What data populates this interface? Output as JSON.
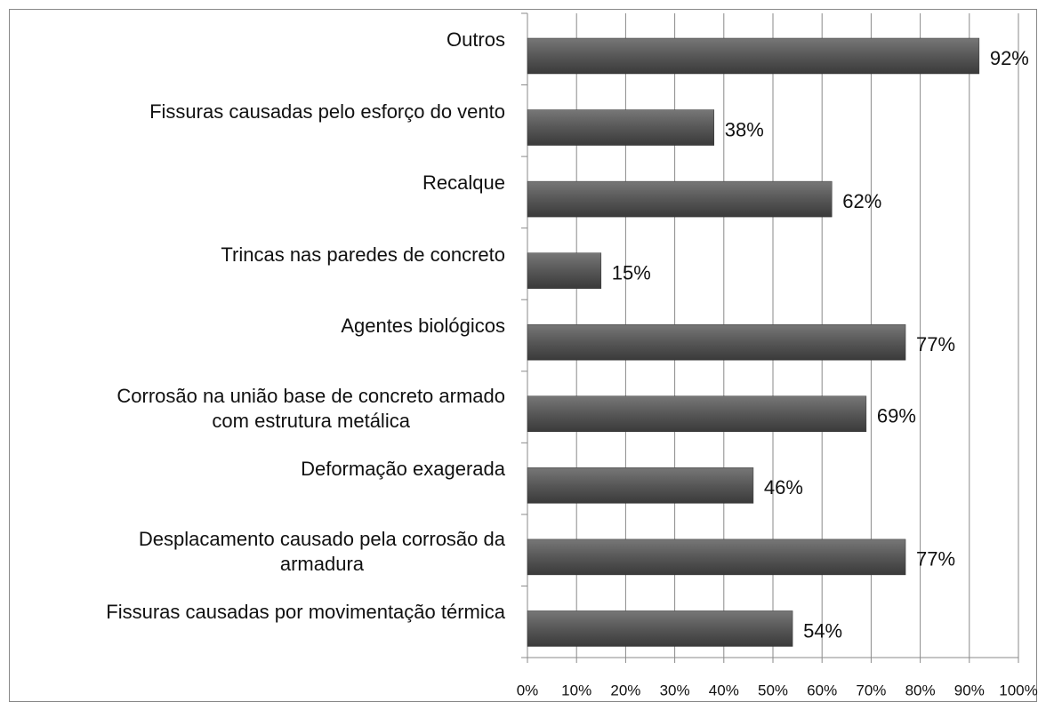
{
  "chart_data": {
    "type": "hbar",
    "categories": [
      "Outros",
      "Fissuras causadas pelo esforço do vento",
      "Recalque",
      "Trincas nas paredes de concreto",
      "Agentes biológicos",
      "Corrosão na união base de concreto armado\ncom estrutura metálica",
      "Deformação exagerada",
      "Desplacamento causado pela corrosão da\narmadura",
      "Fissuras causadas por movimentação térmica"
    ],
    "values": [
      92,
      38,
      62,
      15,
      77,
      69,
      46,
      77,
      54
    ],
    "value_labels": [
      "92%",
      "38%",
      "62%",
      "15%",
      "77%",
      "69%",
      "46%",
      "77%",
      "54%"
    ],
    "color": "#575757",
    "xlim": [
      0,
      100
    ],
    "xticks": [
      {
        "value": 0,
        "label": "0%"
      },
      {
        "value": 10,
        "label": "10%"
      },
      {
        "value": 20,
        "label": "20%"
      },
      {
        "value": 30,
        "label": "30%"
      },
      {
        "value": 40,
        "label": "40%"
      },
      {
        "value": 50,
        "label": "50%"
      },
      {
        "value": 60,
        "label": "60%"
      },
      {
        "value": 70,
        "label": "70%"
      },
      {
        "value": 80,
        "label": "80%"
      },
      {
        "value": 90,
        "label": "90%"
      },
      {
        "value": 100,
        "label": "100%"
      }
    ],
    "grid": true
  }
}
